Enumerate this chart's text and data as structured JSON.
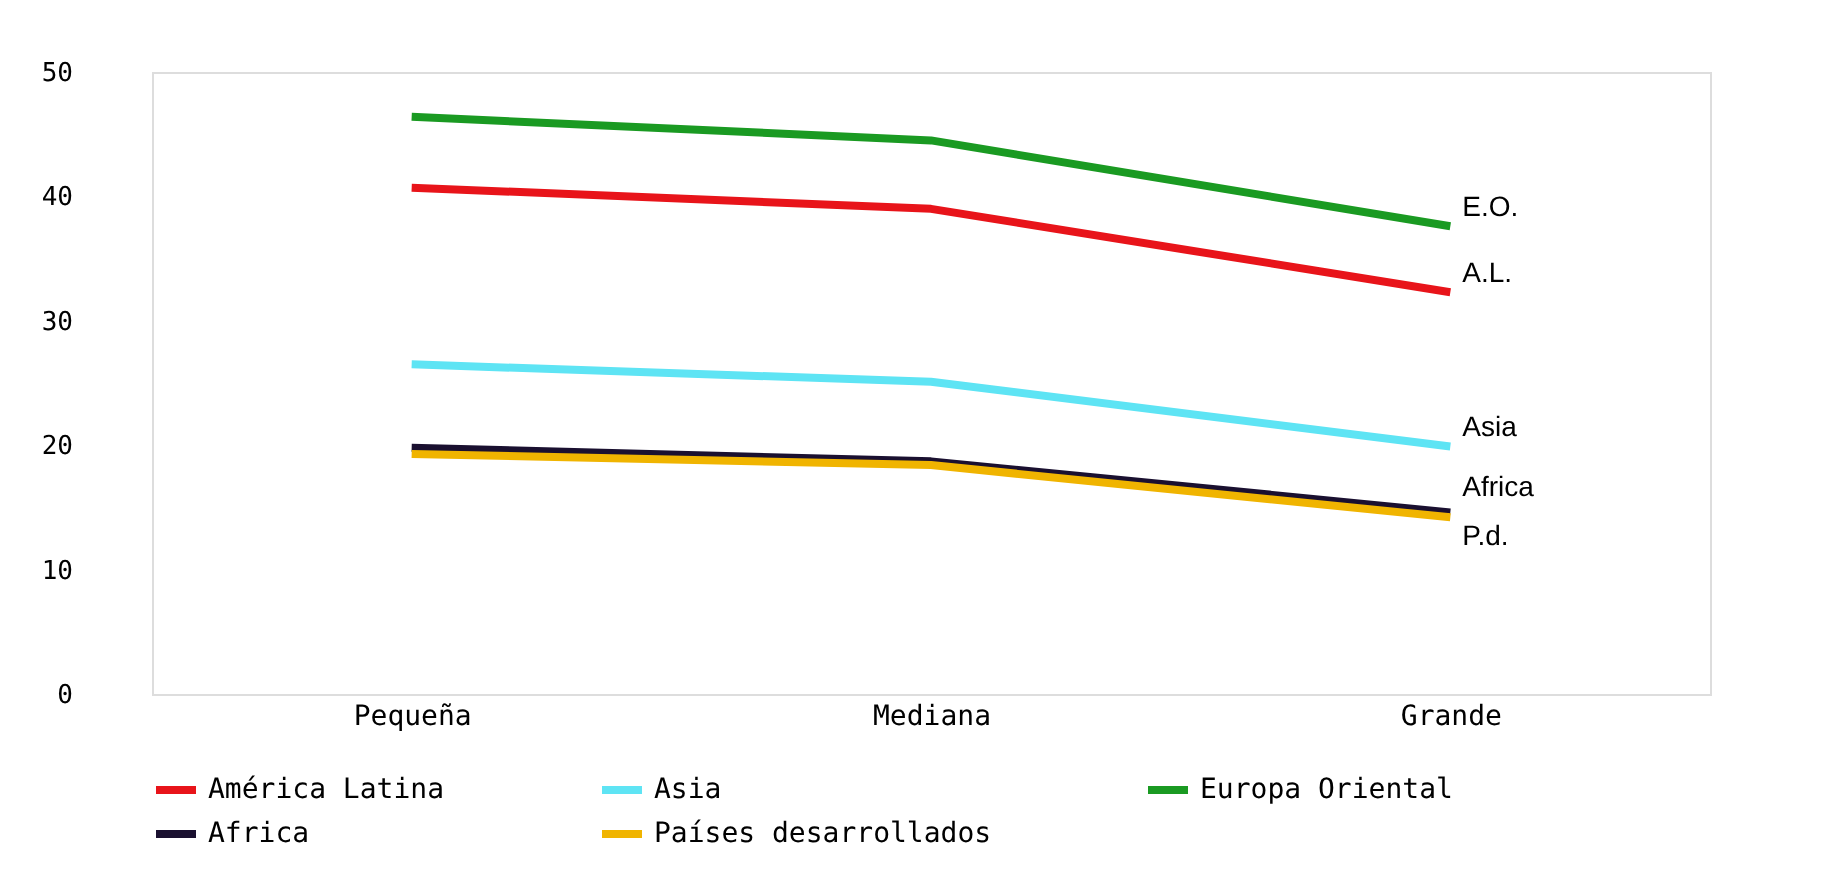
{
  "chart_data": {
    "type": "line",
    "categories": [
      "Pequeña",
      "Mediana",
      "Grande"
    ],
    "series": [
      {
        "name": "América Latina",
        "color": "#e8141a",
        "values": [
          40.7,
          39.0,
          32.3
        ]
      },
      {
        "name": "Asia",
        "color": "#5ee4f4",
        "values": [
          26.5,
          25.1,
          19.9
        ]
      },
      {
        "name": "Europa Oriental",
        "color": "#1a9a22",
        "values": [
          46.4,
          44.5,
          37.6
        ]
      },
      {
        "name": "Africa",
        "color": "#1a1030",
        "values": [
          19.8,
          18.7,
          14.6
        ]
      },
      {
        "name": "Países desarrollados",
        "color": "#f0b400",
        "values": [
          19.3,
          18.4,
          14.2
        ]
      }
    ],
    "ylim": [
      0,
      50
    ],
    "yticks": [
      0,
      10,
      20,
      30,
      40,
      50
    ],
    "grid": false,
    "legend": "bottom",
    "marker": "none",
    "line_style": "solid",
    "annotations": [
      {
        "text": "E.O.",
        "x": "Grande",
        "y": 37.6
      },
      {
        "text": "A.L.",
        "x": "Grande",
        "y": 32.3
      },
      {
        "text": "Asia",
        "x": "Grande",
        "y": 19.9
      },
      {
        "text": "Africa",
        "x": "Grande",
        "y": 14.6
      },
      {
        "text": "P.d.",
        "x": "Grande",
        "y": 14.2
      }
    ]
  }
}
